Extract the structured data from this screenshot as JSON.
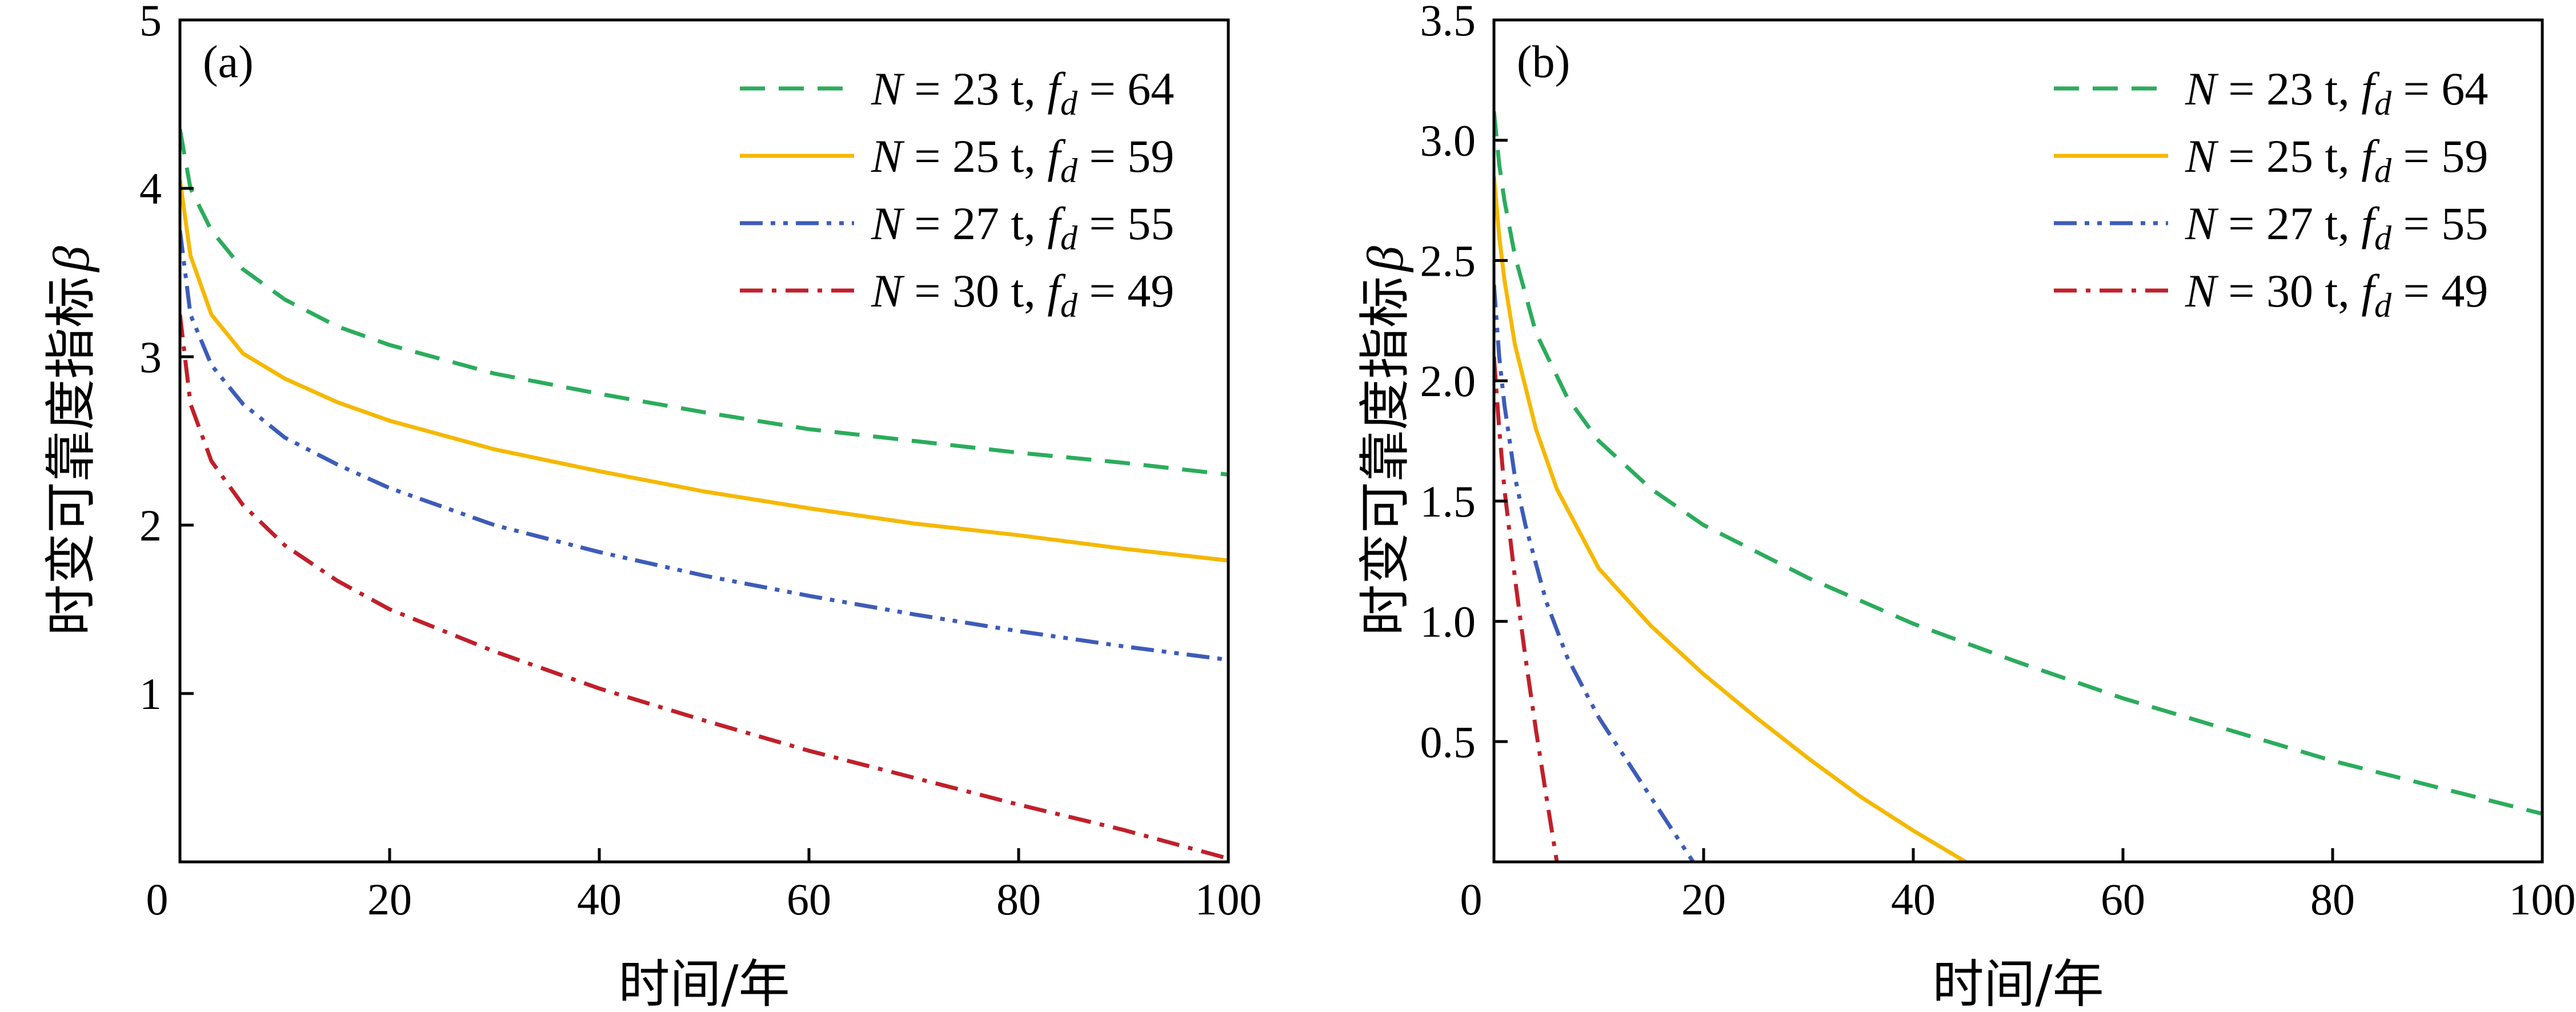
{
  "chart_data": [
    {
      "type": "line",
      "panel_label": "(a)",
      "xlabel": "时间/年",
      "ylabel": "时变可靠度指标",
      "ylabel_symbol": "β",
      "xlim": [
        0,
        100
      ],
      "ylim": [
        0,
        5
      ],
      "xticks": [
        0,
        20,
        40,
        60,
        80,
        100
      ],
      "yticks": [
        0,
        1,
        2,
        3,
        4,
        5
      ],
      "xtick_labels": [
        "0",
        "20",
        "40",
        "60",
        "80",
        "100"
      ],
      "ytick_labels": [
        "",
        "1",
        "2",
        "3",
        "4",
        "5"
      ],
      "origin_label": "0",
      "legend_position": "top-right",
      "grid": false,
      "series": [
        {
          "name_prefix": "N = 23 t, ",
          "name_sym": "f",
          "name_sub": "d",
          "name_suffix": " = 64",
          "color": "#2bac5c",
          "style": "dashed",
          "x": [
            0,
            1,
            3,
            6,
            10,
            15,
            20,
            30,
            40,
            50,
            60,
            70,
            80,
            90,
            100
          ],
          "y": [
            4.35,
            4.0,
            3.75,
            3.52,
            3.34,
            3.18,
            3.07,
            2.9,
            2.78,
            2.67,
            2.57,
            2.5,
            2.43,
            2.37,
            2.3
          ]
        },
        {
          "name_prefix": "N = 25 t, ",
          "name_sym": "f",
          "name_sub": "d",
          "name_suffix": " = 59",
          "color": "#f5b800",
          "style": "solid",
          "x": [
            0,
            1,
            3,
            6,
            10,
            15,
            20,
            30,
            40,
            50,
            60,
            70,
            80,
            90,
            100
          ],
          "y": [
            4.05,
            3.6,
            3.25,
            3.02,
            2.87,
            2.73,
            2.62,
            2.45,
            2.32,
            2.2,
            2.1,
            2.01,
            1.94,
            1.86,
            1.79
          ]
        },
        {
          "name_prefix": "N = 27 t, ",
          "name_sym": "f",
          "name_sub": "d",
          "name_suffix": " = 55",
          "color": "#3d5cb8",
          "style": "dashdotdot",
          "x": [
            0,
            1,
            3,
            6,
            10,
            15,
            20,
            30,
            40,
            50,
            60,
            70,
            80,
            90,
            100
          ],
          "y": [
            3.75,
            3.25,
            2.95,
            2.72,
            2.52,
            2.36,
            2.22,
            2.0,
            1.84,
            1.7,
            1.58,
            1.47,
            1.37,
            1.28,
            1.2
          ]
        },
        {
          "name_prefix": "N = 30 t, ",
          "name_sym": "f",
          "name_sub": "d",
          "name_suffix": " = 49",
          "color": "#c0202a",
          "style": "dashdot",
          "x": [
            0,
            1,
            3,
            6,
            10,
            15,
            20,
            30,
            40,
            50,
            60,
            70,
            80,
            90,
            100
          ],
          "y": [
            3.25,
            2.72,
            2.38,
            2.12,
            1.88,
            1.67,
            1.5,
            1.25,
            1.03,
            0.84,
            0.66,
            0.5,
            0.34,
            0.19,
            0.02
          ]
        }
      ]
    },
    {
      "type": "line",
      "panel_label": "(b)",
      "xlabel": "时间/年",
      "ylabel": "时变可靠度指标",
      "ylabel_symbol": "β",
      "xlim": [
        0,
        100
      ],
      "ylim": [
        0,
        3.5
      ],
      "xticks": [
        0,
        20,
        40,
        60,
        80,
        100
      ],
      "yticks": [
        0,
        0.5,
        1.0,
        1.5,
        2.0,
        2.5,
        3.0,
        3.5
      ],
      "xtick_labels": [
        "0",
        "20",
        "40",
        "60",
        "80",
        "100"
      ],
      "ytick_labels": [
        "",
        "0.5",
        "1.0",
        "1.5",
        "2.0",
        "2.5",
        "3.0",
        "3.5"
      ],
      "origin_label": "0",
      "legend_position": "top-right",
      "grid": false,
      "series": [
        {
          "name_prefix": "N = 23 t, ",
          "name_sym": "f",
          "name_sub": "d",
          "name_suffix": " = 64",
          "color": "#2bac5c",
          "style": "dashed",
          "x": [
            0,
            0.5,
            1,
            2,
            4,
            7,
            10,
            15,
            20,
            30,
            40,
            50,
            60,
            70,
            80,
            90,
            100
          ],
          "y": [
            3.12,
            2.9,
            2.75,
            2.52,
            2.2,
            1.93,
            1.75,
            1.55,
            1.4,
            1.18,
            0.99,
            0.83,
            0.68,
            0.55,
            0.42,
            0.31,
            0.2
          ]
        },
        {
          "name_prefix": "N = 25 t, ",
          "name_sym": "f",
          "name_sub": "d",
          "name_suffix": " = 59",
          "color": "#f5b800",
          "style": "solid",
          "x": [
            0,
            0.5,
            1,
            2,
            4,
            6,
            10,
            15,
            20,
            25,
            30,
            35,
            40,
            45
          ],
          "y": [
            2.85,
            2.6,
            2.42,
            2.15,
            1.8,
            1.55,
            1.22,
            0.98,
            0.78,
            0.6,
            0.43,
            0.27,
            0.13,
            0.0
          ]
        },
        {
          "name_prefix": "N = 27 t, ",
          "name_sym": "f",
          "name_sub": "d",
          "name_suffix": " = 55",
          "color": "#3d5cb8",
          "style": "dashdotdot",
          "x": [
            0,
            0.5,
            1,
            2,
            3,
            5,
            7,
            10,
            13,
            16,
            19
          ],
          "y": [
            2.4,
            2.1,
            1.9,
            1.6,
            1.4,
            1.08,
            0.85,
            0.6,
            0.4,
            0.2,
            0.0
          ]
        },
        {
          "name_prefix": "N = 30 t, ",
          "name_sym": "f",
          "name_sub": "d",
          "name_suffix": " = 49",
          "color": "#c0202a",
          "style": "dashdot",
          "x": [
            0,
            0.5,
            1,
            2,
            3,
            4,
            5,
            6
          ],
          "y": [
            2.1,
            1.8,
            1.55,
            1.18,
            0.85,
            0.55,
            0.27,
            0.0
          ]
        }
      ]
    }
  ]
}
